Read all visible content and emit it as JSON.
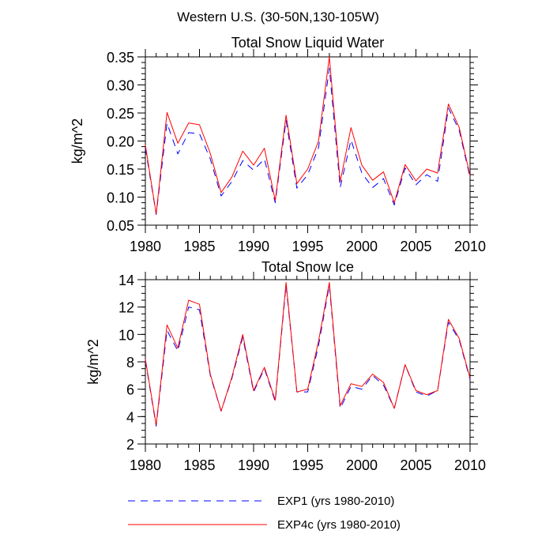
{
  "figure": {
    "title": "Western U.S. (30-50N,130-105W)"
  },
  "legend": {
    "placement": "bottom",
    "entries": [
      {
        "name": "EXP1 (yrs 1980-2010)",
        "color": "#0000ff",
        "style": "dashed"
      },
      {
        "name": "EXP4c (yrs 1980-2010)",
        "color": "#ff0000",
        "style": "solid"
      }
    ]
  },
  "chart_data": [
    {
      "type": "line",
      "title": "Total Snow Liquid Water",
      "xlabel": "",
      "ylabel": "kg/m^2",
      "xlim": [
        1980,
        2010
      ],
      "ylim": [
        0.05,
        0.35
      ],
      "xticks": [
        1980,
        1985,
        1990,
        1995,
        2000,
        2005,
        2010
      ],
      "yticks": [
        0.05,
        0.1,
        0.15,
        0.2,
        0.25,
        0.3,
        0.35
      ],
      "ytick_labels": [
        "0.05",
        "0.10",
        "0.15",
        "0.20",
        "0.25",
        "0.30",
        "0.35"
      ],
      "grid": false,
      "x": [
        1980,
        1981,
        1982,
        1983,
        1984,
        1985,
        1986,
        1987,
        1988,
        1989,
        1990,
        1991,
        1992,
        1993,
        1994,
        1995,
        1996,
        1997,
        1998,
        1999,
        2000,
        2001,
        2002,
        2003,
        2004,
        2005,
        2006,
        2007,
        2008,
        2009,
        2010
      ],
      "series": [
        {
          "name": "EXP1 (yrs 1980-2010)",
          "color": "#0000ff",
          "style": "dashed",
          "values": [
            0.188,
            0.069,
            0.232,
            0.177,
            0.215,
            0.213,
            0.168,
            0.102,
            0.128,
            0.165,
            0.148,
            0.168,
            0.09,
            0.237,
            0.116,
            0.14,
            0.188,
            0.33,
            0.117,
            0.202,
            0.143,
            0.117,
            0.133,
            0.086,
            0.152,
            0.122,
            0.14,
            0.128,
            0.259,
            0.219,
            0.135
          ]
        },
        {
          "name": "EXP4c (yrs 1980-2010)",
          "color": "#ff0000",
          "style": "solid",
          "values": [
            0.193,
            0.07,
            0.251,
            0.196,
            0.232,
            0.229,
            0.178,
            0.108,
            0.136,
            0.182,
            0.157,
            0.187,
            0.094,
            0.246,
            0.124,
            0.15,
            0.2,
            0.35,
            0.127,
            0.224,
            0.157,
            0.13,
            0.145,
            0.09,
            0.158,
            0.129,
            0.15,
            0.143,
            0.266,
            0.224,
            0.138
          ]
        }
      ]
    },
    {
      "type": "line",
      "title": "Total Snow Ice",
      "xlabel": "",
      "ylabel": "kg/m^2",
      "xlim": [
        1980,
        2010
      ],
      "ylim": [
        2,
        14
      ],
      "xticks": [
        1980,
        1985,
        1990,
        1995,
        2000,
        2005,
        2010
      ],
      "yticks": [
        2,
        4,
        6,
        8,
        10,
        12,
        14
      ],
      "ytick_labels": [
        "2",
        "4",
        "6",
        "8",
        "10",
        "12",
        "14"
      ],
      "grid": false,
      "x": [
        1980,
        1981,
        1982,
        1983,
        1984,
        1985,
        1986,
        1987,
        1988,
        1989,
        1990,
        1991,
        1992,
        1993,
        1994,
        1995,
        1996,
        1997,
        1998,
        1999,
        2000,
        2001,
        2002,
        2003,
        2004,
        2005,
        2006,
        2007,
        2008,
        2009,
        2010
      ],
      "series": [
        {
          "name": "EXP1 (yrs 1980-2010)",
          "color": "#0000ff",
          "style": "dashed",
          "values": [
            8.1,
            3.3,
            10.3,
            8.8,
            12.0,
            11.8,
            7.0,
            4.4,
            6.8,
            9.8,
            5.8,
            7.5,
            5.1,
            13.6,
            5.8,
            5.8,
            9.2,
            13.6,
            4.6,
            6.2,
            6.0,
            7.0,
            6.3,
            4.6,
            7.8,
            5.8,
            5.5,
            5.9,
            10.9,
            9.6,
            6.7
          ]
        },
        {
          "name": "EXP4c (yrs 1980-2010)",
          "color": "#ff0000",
          "style": "solid",
          "values": [
            8.2,
            3.4,
            10.7,
            9.0,
            12.5,
            12.2,
            7.1,
            4.4,
            6.9,
            10.0,
            5.9,
            7.6,
            5.2,
            13.8,
            5.8,
            6.0,
            9.5,
            13.8,
            4.8,
            6.4,
            6.2,
            7.1,
            6.5,
            4.6,
            7.8,
            5.9,
            5.6,
            5.9,
            11.1,
            9.7,
            6.8
          ]
        }
      ]
    }
  ]
}
